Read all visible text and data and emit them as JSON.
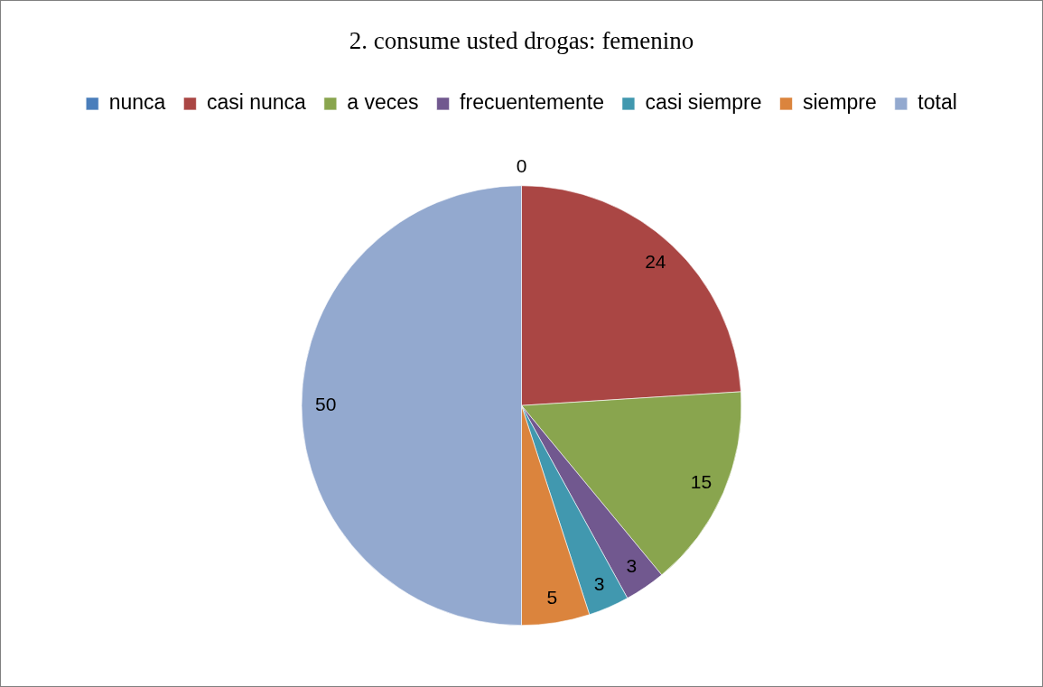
{
  "chart_data": {
    "type": "pie",
    "title": "2. consume usted drogas: femenino",
    "categories": [
      "nunca",
      "casi nunca",
      "a veces",
      "frecuentemente",
      "casi siempre",
      "siempre",
      "total"
    ],
    "values": [
      0,
      24,
      15,
      3,
      3,
      5,
      50
    ],
    "value_labels": [
      "0",
      "24",
      "15",
      "3",
      "3",
      "5",
      "50"
    ],
    "colors": [
      "#4a7ebb",
      "#aa4644",
      "#89a54e",
      "#71588f",
      "#4198af",
      "#db843d",
      "#93a9cf"
    ],
    "legend": "top"
  }
}
